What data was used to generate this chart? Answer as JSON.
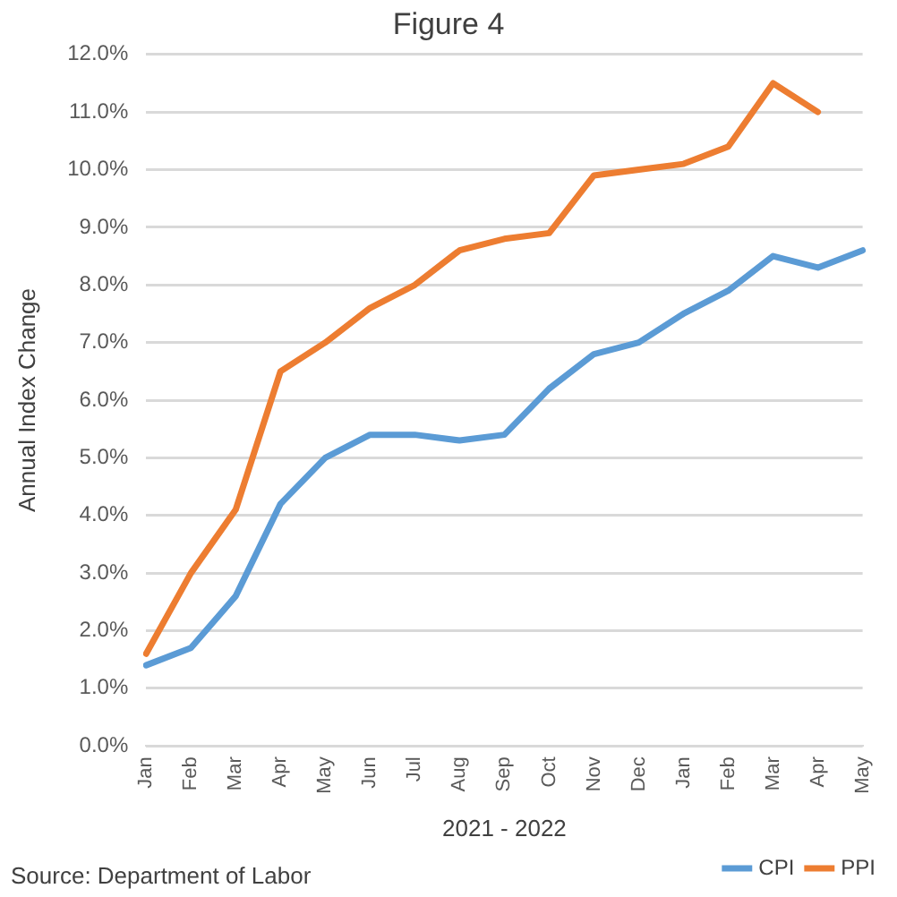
{
  "chart_data": {
    "type": "line",
    "title": "Figure 4",
    "xlabel": "2021 - 2022",
    "ylabel": "Annual Index Change",
    "categories": [
      "Jan",
      "Feb",
      "Mar",
      "Apr",
      "May",
      "Jun",
      "Jul",
      "Aug",
      "Sep",
      "Oct",
      "Nov",
      "Dec",
      "Jan",
      "Feb",
      "Mar",
      "Apr",
      "May"
    ],
    "series": [
      {
        "name": "CPI",
        "color": "#5b9bd5",
        "values": [
          1.4,
          1.7,
          2.6,
          4.2,
          5.0,
          5.4,
          5.4,
          5.3,
          5.4,
          6.2,
          6.8,
          7.0,
          7.5,
          7.9,
          8.5,
          8.3,
          8.6
        ]
      },
      {
        "name": "PPI",
        "color": "#ed7d31",
        "values": [
          1.6,
          3.0,
          4.1,
          6.5,
          7.0,
          7.6,
          8.0,
          8.6,
          8.8,
          8.9,
          9.9,
          10.0,
          10.1,
          10.4,
          11.5,
          11.0,
          null
        ]
      }
    ],
    "ylim": [
      0,
      12
    ],
    "yticks": [
      {
        "value": 0,
        "label": "0.0%"
      },
      {
        "value": 1,
        "label": "1.0%"
      },
      {
        "value": 2,
        "label": "2.0%"
      },
      {
        "value": 3,
        "label": "3.0%"
      },
      {
        "value": 4,
        "label": "4.0%"
      },
      {
        "value": 5,
        "label": "5.0%"
      },
      {
        "value": 6,
        "label": "6.0%"
      },
      {
        "value": 7,
        "label": "7.0%"
      },
      {
        "value": 8,
        "label": "8.0%"
      },
      {
        "value": 9,
        "label": "9.0%"
      },
      {
        "value": 10,
        "label": "10.0%"
      },
      {
        "value": 11,
        "label": "11.0%"
      },
      {
        "value": 12,
        "label": "12.0%"
      }
    ],
    "grid": "y",
    "legend": "bottom",
    "marker": "none",
    "line_style": "solid",
    "annotations": [
      "Source: Department of Labor"
    ]
  }
}
